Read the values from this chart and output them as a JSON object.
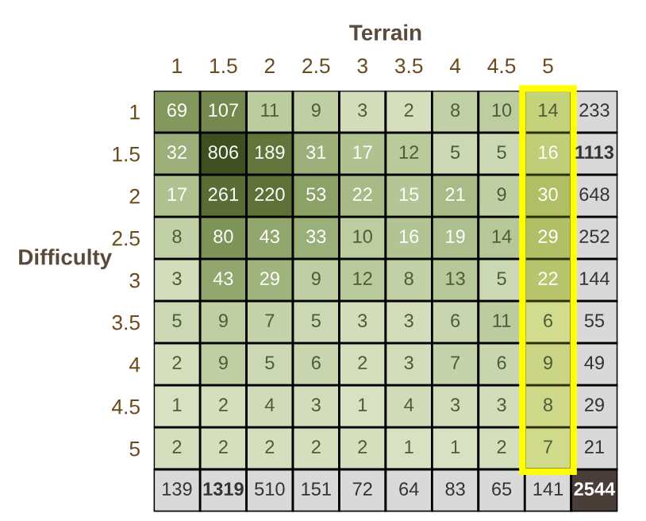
{
  "chart_data": {
    "type": "heatmap",
    "xlabel": "Terrain",
    "ylabel": "Difficulty",
    "categories": [
      "1",
      "1.5",
      "2",
      "2.5",
      "3",
      "3.5",
      "4",
      "4.5",
      "5",
      null
    ],
    "y_categories": [
      "1",
      "1.5",
      "2",
      "2.5",
      "3",
      "3.5",
      "4",
      "4.5",
      "5",
      null
    ],
    "cells": [
      [
        69,
        107,
        11,
        9,
        3,
        2,
        8,
        10,
        14,
        233
      ],
      [
        32,
        806,
        189,
        31,
        17,
        12,
        5,
        5,
        16,
        1113
      ],
      [
        17,
        261,
        220,
        53,
        22,
        15,
        21,
        9,
        30,
        648
      ],
      [
        8,
        80,
        43,
        33,
        10,
        16,
        19,
        14,
        29,
        252
      ],
      [
        3,
        43,
        29,
        9,
        12,
        8,
        13,
        5,
        22,
        144
      ],
      [
        5,
        9,
        7,
        5,
        3,
        3,
        6,
        11,
        6,
        55
      ],
      [
        2,
        9,
        5,
        6,
        2,
        3,
        7,
        6,
        9,
        49
      ],
      [
        1,
        2,
        4,
        3,
        1,
        4,
        3,
        3,
        8,
        29
      ],
      [
        2,
        2,
        2,
        2,
        2,
        1,
        1,
        2,
        7,
        21
      ],
      [
        139,
        1319,
        510,
        151,
        72,
        64,
        83,
        65,
        141,
        2544
      ]
    ],
    "data_labels": true,
    "bands": [
      {
        "axis": "x",
        "from": "5",
        "to": "5",
        "color": "#ffff00"
      }
    ]
  }
}
